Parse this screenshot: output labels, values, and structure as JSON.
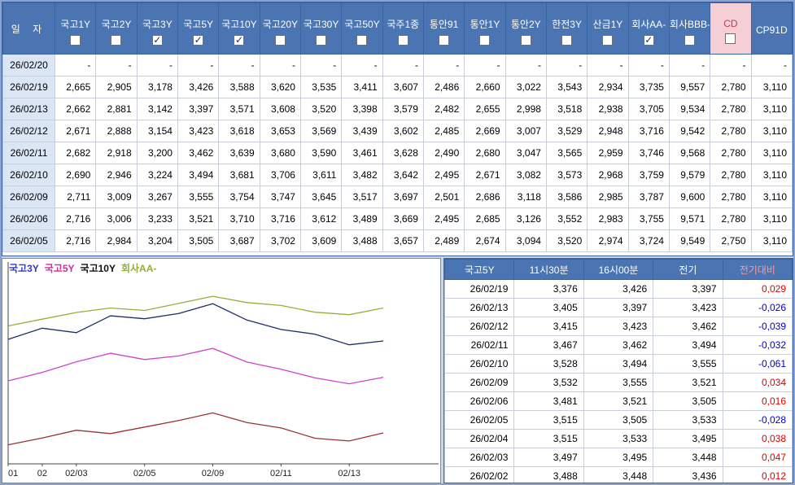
{
  "top_table": {
    "date_header": "일 자",
    "columns": [
      {
        "label": "국고1Y",
        "checked": false
      },
      {
        "label": "국고2Y",
        "checked": false
      },
      {
        "label": "국고3Y",
        "checked": true
      },
      {
        "label": "국고5Y",
        "checked": true
      },
      {
        "label": "국고10Y",
        "checked": true
      },
      {
        "label": "국고20Y",
        "checked": false
      },
      {
        "label": "국고30Y",
        "checked": false
      },
      {
        "label": "국고50Y",
        "checked": false
      },
      {
        "label": "국주1종",
        "checked": false
      },
      {
        "label": "통안91",
        "checked": false
      },
      {
        "label": "통안1Y",
        "checked": false
      },
      {
        "label": "통안2Y",
        "checked": false
      },
      {
        "label": "한전3Y",
        "checked": false
      },
      {
        "label": "산금1Y",
        "checked": false
      },
      {
        "label": "회사AA-",
        "checked": true
      },
      {
        "label": "회사BBB-",
        "checked": false
      },
      {
        "label": "CD",
        "checked": false,
        "highlight": true
      },
      {
        "label": "CP91D",
        "checked": false,
        "has_checkbox": false
      }
    ],
    "rows": [
      {
        "date": "26/02/20",
        "values": [
          "-",
          "-",
          "-",
          "-",
          "-",
          "-",
          "-",
          "-",
          "-",
          "-",
          "-",
          "-",
          "-",
          "-",
          "-",
          "-",
          "-",
          "-"
        ]
      },
      {
        "date": "26/02/19",
        "values": [
          "2,665",
          "2,905",
          "3,178",
          "3,426",
          "3,588",
          "3,620",
          "3,535",
          "3,411",
          "3,607",
          "2,486",
          "2,660",
          "3,022",
          "3,543",
          "2,934",
          "3,735",
          "9,557",
          "2,780",
          "3,110"
        ]
      },
      {
        "date": "26/02/13",
        "values": [
          "2,662",
          "2,881",
          "3,142",
          "3,397",
          "3,571",
          "3,608",
          "3,520",
          "3,398",
          "3,579",
          "2,482",
          "2,655",
          "2,998",
          "3,518",
          "2,938",
          "3,705",
          "9,534",
          "2,780",
          "3,110"
        ]
      },
      {
        "date": "26/02/12",
        "values": [
          "2,671",
          "2,888",
          "3,154",
          "3,423",
          "3,618",
          "3,653",
          "3,569",
          "3,439",
          "3,602",
          "2,485",
          "2,669",
          "3,007",
          "3,529",
          "2,948",
          "3,716",
          "9,542",
          "2,780",
          "3,110"
        ]
      },
      {
        "date": "26/02/11",
        "values": [
          "2,682",
          "2,918",
          "3,200",
          "3,462",
          "3,639",
          "3,680",
          "3,590",
          "3,461",
          "3,628",
          "2,490",
          "2,680",
          "3,047",
          "3,565",
          "2,959",
          "3,746",
          "9,568",
          "2,780",
          "3,110"
        ]
      },
      {
        "date": "26/02/10",
        "values": [
          "2,690",
          "2,946",
          "3,224",
          "3,494",
          "3,681",
          "3,706",
          "3,611",
          "3,482",
          "3,642",
          "2,495",
          "2,671",
          "3,082",
          "3,573",
          "2,968",
          "3,759",
          "9,579",
          "2,780",
          "3,110"
        ]
      },
      {
        "date": "26/02/09",
        "values": [
          "2,711",
          "3,009",
          "3,267",
          "3,555",
          "3,754",
          "3,747",
          "3,645",
          "3,517",
          "3,697",
          "2,501",
          "2,686",
          "3,118",
          "3,586",
          "2,985",
          "3,787",
          "9,600",
          "2,780",
          "3,110"
        ]
      },
      {
        "date": "26/02/06",
        "values": [
          "2,716",
          "3,006",
          "3,233",
          "3,521",
          "3,710",
          "3,716",
          "3,612",
          "3,489",
          "3,669",
          "2,495",
          "2,685",
          "3,126",
          "3,552",
          "2,983",
          "3,755",
          "9,571",
          "2,780",
          "3,110"
        ]
      },
      {
        "date": "26/02/05",
        "values": [
          "2,716",
          "2,984",
          "3,204",
          "3,505",
          "3,687",
          "3,702",
          "3,609",
          "3,488",
          "3,657",
          "2,489",
          "2,674",
          "3,094",
          "3,520",
          "2,974",
          "3,724",
          "9,549",
          "2,750",
          "3,110"
        ]
      }
    ]
  },
  "detail_table": {
    "series_label": "국고5Y",
    "headers": [
      "11시30분",
      "16시00분",
      "전기",
      "전기대비"
    ],
    "rows": [
      {
        "date": "26/02/19",
        "values": [
          "3,376",
          "3,426",
          "3,397",
          "0,029"
        ]
      },
      {
        "date": "26/02/13",
        "values": [
          "3,405",
          "3,397",
          "3,423",
          "-0,026"
        ]
      },
      {
        "date": "26/02/12",
        "values": [
          "3,415",
          "3,423",
          "3,462",
          "-0,039"
        ]
      },
      {
        "date": "26/02/11",
        "values": [
          "3,467",
          "3,462",
          "3,494",
          "-0,032"
        ]
      },
      {
        "date": "26/02/10",
        "values": [
          "3,528",
          "3,494",
          "3,555",
          "-0,061"
        ]
      },
      {
        "date": "26/02/09",
        "values": [
          "3,532",
          "3,555",
          "3,521",
          "0,034"
        ]
      },
      {
        "date": "26/02/06",
        "values": [
          "3,481",
          "3,521",
          "3,505",
          "0,016"
        ]
      },
      {
        "date": "26/02/05",
        "values": [
          "3,515",
          "3,505",
          "3,533",
          "-0,028"
        ]
      },
      {
        "date": "26/02/04",
        "values": [
          "3,515",
          "3,533",
          "3,495",
          "0,038"
        ]
      },
      {
        "date": "26/02/03",
        "values": [
          "3,497",
          "3,495",
          "3,448",
          "0,047"
        ]
      },
      {
        "date": "26/02/02",
        "values": [
          "3,488",
          "3,448",
          "3,436",
          "0,012"
        ]
      }
    ]
  },
  "chart_data": {
    "type": "line",
    "x": [
      "02/01",
      "02/02",
      "02/03",
      "02/04",
      "02/05",
      "02/06",
      "02/09",
      "02/10",
      "02/11",
      "02/12",
      "02/13",
      "02/19"
    ],
    "x_domain": 12.5,
    "ylim": [
      3.04,
      3.86
    ],
    "ticks": [
      {
        "i": 0,
        "label": "01"
      },
      {
        "i": 1,
        "label": "02"
      },
      {
        "i": 2,
        "label": "02/03"
      },
      {
        "i": 4,
        "label": "02/05"
      },
      {
        "i": 6,
        "label": "02/09"
      },
      {
        "i": 8,
        "label": "02/11"
      },
      {
        "i": 10,
        "label": "02/13"
      }
    ],
    "series": [
      {
        "name": "ktb3y",
        "label": "국고3Y",
        "line_color": "#993333",
        "legend_color": "#2e3bbf",
        "values": [
          3.125,
          3.155,
          3.19,
          3.175,
          3.204,
          3.233,
          3.267,
          3.224,
          3.2,
          3.154,
          3.142,
          3.178
        ]
      },
      {
        "name": "ktb5y",
        "label": "국고5Y",
        "line_color": "#cc44cc",
        "legend_color": "#cc2e9e",
        "values": [
          3.41,
          3.448,
          3.495,
          3.533,
          3.505,
          3.521,
          3.555,
          3.494,
          3.462,
          3.423,
          3.397,
          3.426
        ]
      },
      {
        "name": "ktb10y",
        "label": "국고10Y",
        "line_color": "#1c2f66",
        "legend_color": "#111111",
        "values": [
          3.595,
          3.645,
          3.625,
          3.7,
          3.687,
          3.71,
          3.754,
          3.681,
          3.639,
          3.618,
          3.571,
          3.588
        ]
      },
      {
        "name": "corp-aa-minus",
        "label": "회사AA-",
        "line_color": "#97ae3c",
        "legend_color": "#8fb030",
        "values": [
          3.655,
          3.685,
          3.715,
          3.735,
          3.724,
          3.755,
          3.787,
          3.759,
          3.746,
          3.716,
          3.705,
          3.735
        ]
      }
    ]
  }
}
